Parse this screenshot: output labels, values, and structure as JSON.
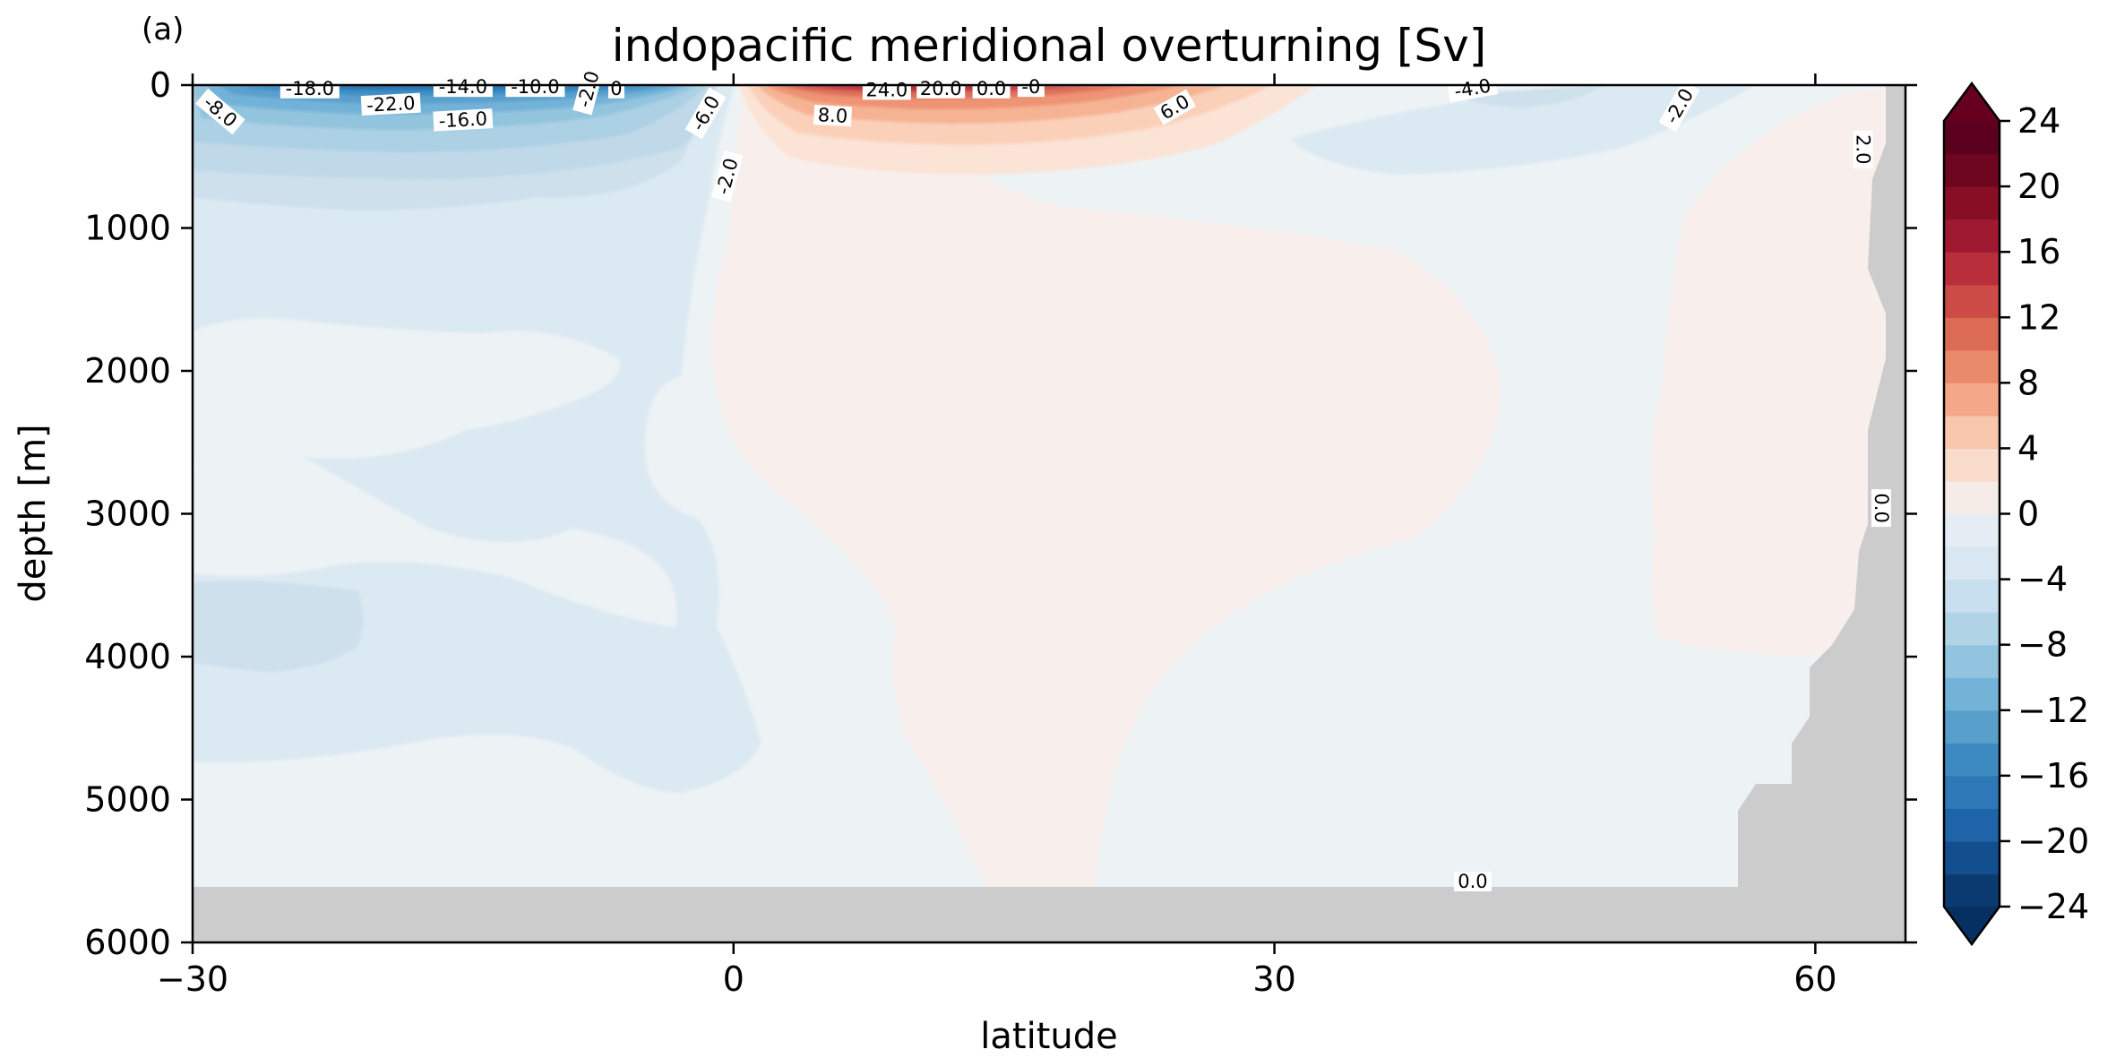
{
  "chart_data": {
    "type": "heatmap",
    "panel_label": "(a)",
    "title": "indopacific meridional overturning [Sv]",
    "xlabel": "latitude",
    "ylabel": "depth [m]",
    "xlim": [
      -30,
      65
    ],
    "ylim": [
      6000,
      0
    ],
    "x_ticks": [
      -30,
      0,
      30,
      60
    ],
    "x_tick_labels": [
      "−30",
      "0",
      "30",
      "60"
    ],
    "y_ticks": [
      0,
      1000,
      2000,
      3000,
      4000,
      5000,
      6000
    ],
    "y_tick_labels": [
      "0",
      "1000",
      "2000",
      "3000",
      "4000",
      "5000",
      "6000"
    ],
    "colorbar": {
      "levels": [
        -24,
        -22,
        -20,
        -18,
        -16,
        -14,
        -12,
        -10,
        -8,
        -6,
        -4,
        -2,
        0,
        2,
        4,
        6,
        8,
        10,
        12,
        14,
        16,
        18,
        20,
        22,
        24
      ],
      "tick_values": [
        24,
        20,
        16,
        12,
        8,
        4,
        0,
        -4,
        -8,
        -12,
        -16,
        -20,
        -24
      ],
      "tick_labels": [
        "24",
        "20",
        "16",
        "12",
        "8",
        "4",
        "0",
        "−4",
        "−8",
        "−12",
        "−16",
        "−20",
        "−24"
      ],
      "extend": "both",
      "colormap": "RdBu_r"
    },
    "land_color": "#cccccc",
    "contour_labels": [
      {
        "text": "-18.0",
        "lat": -23.5,
        "depth": 30
      },
      {
        "text": "-14.0",
        "lat": -15,
        "depth": 20
      },
      {
        "text": "-10.0",
        "lat": -11,
        "depth": 20
      },
      {
        "text": "-2.0",
        "lat": -8,
        "depth": 30
      },
      {
        "text": "0",
        "lat": -6.5,
        "depth": 30
      },
      {
        "text": "-22.0",
        "lat": -19,
        "depth": 140
      },
      {
        "text": "-16.0",
        "lat": -15,
        "depth": 250
      },
      {
        "text": "-8.0",
        "lat": -28.5,
        "depth": 190
      },
      {
        "text": "-6.0",
        "lat": -1.5,
        "depth": 200
      },
      {
        "text": "-2.0",
        "lat": -0.3,
        "depth": 640
      },
      {
        "text": "24.0",
        "lat": 8.5,
        "depth": 40
      },
      {
        "text": "20.0",
        "lat": 11.5,
        "depth": 30
      },
      {
        "text": "0.0",
        "lat": 14.3,
        "depth": 30
      },
      {
        "text": "-0",
        "lat": 16.5,
        "depth": 20
      },
      {
        "text": "8.0",
        "lat": 5.5,
        "depth": 220
      },
      {
        "text": "6.0",
        "lat": 24.5,
        "depth": 160
      },
      {
        "text": "-4.0",
        "lat": 41,
        "depth": 30
      },
      {
        "text": "-2.0",
        "lat": 52.5,
        "depth": 150
      },
      {
        "text": "2.0",
        "lat": 62.6,
        "depth": 450
      },
      {
        "text": "0.0",
        "lat": 63.6,
        "depth": 2960
      },
      {
        "text": "0.0",
        "lat": 41,
        "depth": 5580
      }
    ]
  }
}
